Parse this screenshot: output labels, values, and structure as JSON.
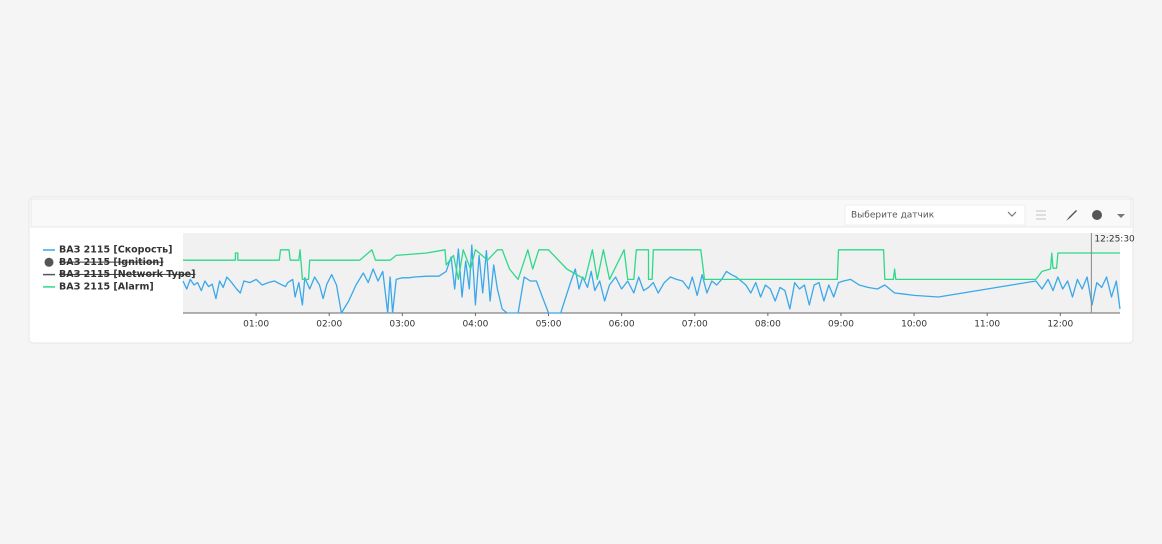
{
  "toolbar": {
    "sensor_placeholder": "Выберите датчик"
  },
  "chart_data": {
    "type": "line",
    "xlim": [
      0,
      769
    ],
    "ylim": [
      0,
      100
    ],
    "xticks": [
      {
        "value": 60,
        "label": "01:00"
      },
      {
        "value": 120,
        "label": "02:00"
      },
      {
        "value": 180,
        "label": "03:00"
      },
      {
        "value": 240,
        "label": "04:00"
      },
      {
        "value": 300,
        "label": "05:00"
      },
      {
        "value": 360,
        "label": "06:00"
      },
      {
        "value": 420,
        "label": "07:00"
      },
      {
        "value": 480,
        "label": "08:00"
      },
      {
        "value": 540,
        "label": "09:00"
      },
      {
        "value": 600,
        "label": "10:00"
      },
      {
        "value": 660,
        "label": "11:00"
      },
      {
        "value": 720,
        "label": "12:00"
      }
    ],
    "cursor": {
      "value": 745.5,
      "label": "12:25:30"
    },
    "series": [
      {
        "name": "ВАЗ 2115 [Скорость]",
        "color": "#3aa8ea",
        "marker": "line",
        "visible": true,
        "x": [
          0,
          3,
          6,
          9,
          12,
          15,
          18,
          21,
          24,
          27,
          30,
          33,
          36,
          40,
          44,
          47,
          50,
          55,
          60,
          65,
          70,
          75,
          80,
          84,
          86,
          90,
          92,
          95,
          98,
          100,
          104,
          108,
          112,
          115,
          118,
          122,
          126,
          130,
          136,
          142,
          148,
          152,
          156,
          160,
          164,
          168,
          170,
          172,
          175,
          180,
          185,
          190,
          200,
          210,
          216,
          220,
          223,
          226,
          229,
          232,
          235,
          237,
          240,
          243,
          246,
          249,
          252,
          255,
          258,
          262,
          266,
          275,
          280,
          285,
          290,
          295,
          300,
          310,
          318,
          322,
          325,
          328,
          332,
          335,
          338,
          342,
          346,
          350,
          355,
          360,
          365,
          370,
          374,
          378,
          382,
          386,
          390,
          395,
          400,
          405,
          410,
          415,
          418,
          422,
          426,
          430,
          434,
          438,
          442,
          446,
          450,
          454,
          458,
          462,
          466,
          470,
          474,
          478,
          482,
          486,
          490,
          494,
          498,
          502,
          506,
          510,
          514,
          518,
          522,
          526,
          530,
          534,
          538,
          542,
          548,
          555,
          562,
          570,
          576,
          584,
          590,
          600,
          620,
          640,
          660,
          680,
          700,
          705,
          710,
          714,
          718,
          722,
          726,
          730,
          734,
          738,
          742,
          746,
          750,
          754,
          758,
          762,
          766,
          769
        ],
        "values": [
          40,
          30,
          42,
          35,
          38,
          28,
          40,
          33,
          36,
          18,
          40,
          32,
          45,
          38,
          30,
          25,
          40,
          38,
          42,
          35,
          38,
          40,
          36,
          33,
          38,
          42,
          20,
          38,
          10,
          44,
          30,
          45,
          35,
          18,
          36,
          48,
          35,
          0,
          15,
          35,
          50,
          38,
          55,
          40,
          52,
          0,
          45,
          0,
          42,
          44,
          44,
          45,
          46,
          46,
          52,
          70,
          30,
          80,
          20,
          65,
          30,
          85,
          10,
          72,
          25,
          78,
          15,
          60,
          30,
          5,
          0,
          0,
          45,
          40,
          40,
          20,
          0,
          0,
          38,
          55,
          30,
          45,
          32,
          52,
          28,
          40,
          15,
          35,
          45,
          30,
          40,
          25,
          45,
          28,
          32,
          38,
          25,
          38,
          45,
          42,
          40,
          30,
          45,
          22,
          48,
          25,
          40,
          35,
          42,
          52,
          48,
          45,
          40,
          35,
          25,
          38,
          20,
          35,
          30,
          15,
          32,
          28,
          5,
          38,
          30,
          35,
          10,
          35,
          38,
          15,
          35,
          20,
          38,
          40,
          42,
          35,
          32,
          30,
          35,
          25,
          24,
          22,
          20,
          25,
          30,
          35,
          40,
          30,
          42,
          28,
          45,
          30,
          40,
          20,
          42,
          30,
          45,
          10,
          38,
          32,
          45,
          20,
          40,
          5
        ]
      },
      {
        "name": "ВАЗ 2115 [Ignition]",
        "color": "#555555",
        "marker": "circle",
        "visible": false
      },
      {
        "name": "ВАЗ 2115 [Network Type]",
        "color": "#555555",
        "marker": "line",
        "visible": false
      },
      {
        "name": "ВАЗ 2115 [Alarm]",
        "color": "#2ed98a",
        "marker": "line",
        "visible": true,
        "x": [
          0,
          43,
          43,
          45,
          45,
          79,
          80,
          87,
          88,
          95,
          96,
          98,
          103,
          104,
          145,
          155,
          158,
          170,
          175,
          200,
          215,
          216,
          222,
          226,
          230,
          236,
          240,
          250,
          258,
          262,
          268,
          275,
          283,
          287,
          292,
          300,
          315,
          330,
          336,
          340,
          345,
          350,
          362,
          365,
          370,
          372,
          382,
          382,
          385,
          386,
          425,
          428,
          537,
          538,
          575,
          576,
          583,
          584,
          585,
          700,
          705,
          712,
          713,
          714,
          717,
          718,
          769
        ],
        "values": [
          66,
          66,
          75,
          75,
          66,
          66,
          79,
          79,
          66,
          66,
          79,
          42,
          42,
          66,
          66,
          79,
          66,
          66,
          72,
          75,
          79,
          60,
          72,
          42,
          79,
          55,
          79,
          66,
          79,
          79,
          55,
          42,
          79,
          55,
          79,
          79,
          55,
          42,
          79,
          42,
          79,
          42,
          79,
          42,
          42,
          79,
          79,
          42,
          42,
          79,
          79,
          42,
          42,
          79,
          79,
          42,
          42,
          55,
          42,
          42,
          52,
          55,
          75,
          56,
          56,
          75,
          75
        ]
      }
    ]
  }
}
